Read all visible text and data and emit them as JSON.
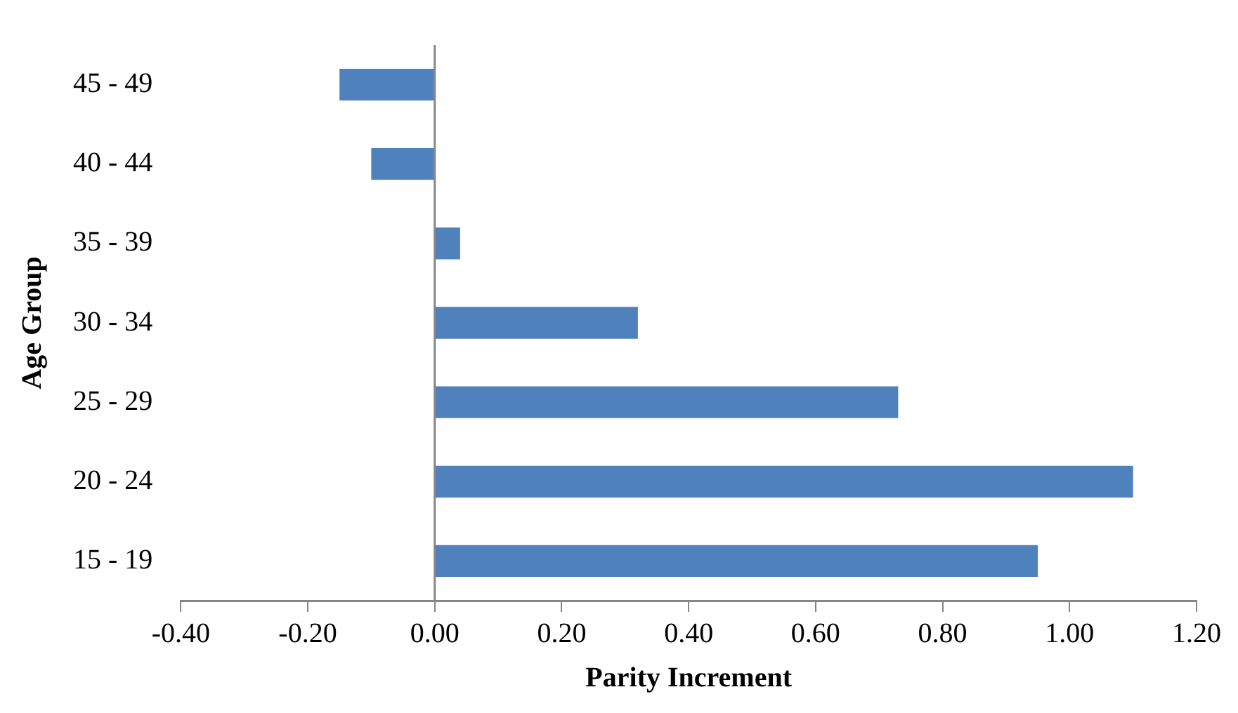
{
  "chart_data": {
    "type": "bar",
    "orientation": "horizontal",
    "xlabel": "Parity Increment",
    "ylabel": "Age Group",
    "categories": [
      "45 - 49",
      "40 - 44",
      "35 - 39",
      "30 - 34",
      "25 - 29",
      "20 - 24",
      "15 - 19"
    ],
    "values": [
      -0.15,
      -0.1,
      0.04,
      0.32,
      0.73,
      1.1,
      0.95
    ],
    "color": "#4f81bd",
    "xlim": [
      -0.4,
      1.2
    ],
    "xticks": [
      {
        "value": -0.4,
        "label": "-0.40"
      },
      {
        "value": -0.2,
        "label": "-0.20"
      },
      {
        "value": 0,
        "label": "0.00"
      },
      {
        "value": 0.2,
        "label": "0.20"
      },
      {
        "value": 0.4,
        "label": "0.40"
      },
      {
        "value": 0.6,
        "label": "0.60"
      },
      {
        "value": 0.8,
        "label": "0.80"
      },
      {
        "value": 1.0,
        "label": "1.00"
      },
      {
        "value": 1.2,
        "label": "1.20"
      }
    ],
    "ref_lines": [
      {
        "axis": "x",
        "value": 0,
        "color": "#868686"
      }
    ],
    "grid": false,
    "legend": false
  }
}
